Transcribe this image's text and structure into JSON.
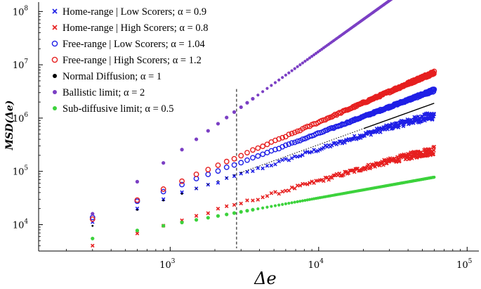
{
  "chart_data": {
    "type": "scatter",
    "title": "",
    "xlabel": "Δe",
    "ylabel": "MSD(Δe)",
    "xscale": "log",
    "yscale": "log",
    "xlim": [
      130,
      120000
    ],
    "ylim": [
      3200,
      150000000
    ],
    "x_ticks": [
      {
        "value": 1000,
        "base": "10",
        "exp": "3"
      },
      {
        "value": 10000,
        "base": "10",
        "exp": "4"
      },
      {
        "value": 100000,
        "base": "10",
        "exp": "5"
      }
    ],
    "y_ticks": [
      {
        "value": 10000,
        "base": "10",
        "exp": "4"
      },
      {
        "value": 100000,
        "base": "10",
        "exp": "5"
      },
      {
        "value": 1000000,
        "base": "10",
        "exp": "6"
      },
      {
        "value": 10000000,
        "base": "10",
        "exp": "7"
      },
      {
        "value": 100000000,
        "base": "10",
        "exp": "8"
      }
    ],
    "vertical_marker": {
      "x": 2800,
      "style": "dashed"
    },
    "x_start": 300,
    "x_step": 300,
    "n_points": 200,
    "legend_position": "top-left",
    "series": [
      {
        "name": "Home-range | Low Scorers; α = 0.9",
        "marker": "x",
        "color": "#1f1fe6",
        "c": 11000,
        "alpha": 0.9,
        "noise": 0.16,
        "bend": 0.12
      },
      {
        "name": "Home-range | High Scorers; α = 0.8",
        "marker": "x",
        "color": "#e61f1f",
        "c": 4000,
        "alpha": 0.8,
        "noise": 0.16,
        "bend": 0.1
      },
      {
        "name": "Free-range | Low Scorers; α = 1.04",
        "marker": "circle-open",
        "color": "#1f1fe6",
        "c": 13500,
        "alpha": 1.04,
        "noise": 0.05,
        "bend": 0
      },
      {
        "name": "Free-range | High Scorers; α = 1.2",
        "marker": "circle-open",
        "color": "#e61f1f",
        "c": 12500,
        "alpha": 1.2,
        "noise": 0.06,
        "bend": 0
      },
      {
        "name": "Normal Diffusion; α = 1",
        "marker": "dot",
        "color": "#000000",
        "c": 9500,
        "alpha": 1.0,
        "noise": 0,
        "bend": 0
      },
      {
        "name": "Ballistic limit; α = 2",
        "marker": "dot",
        "color": "#7b3fc4",
        "c": 16000,
        "alpha": 2.0,
        "noise": 0,
        "bend": 0
      },
      {
        "name": "Sub-diffusive limit;  α = 0.5",
        "marker": "dot",
        "color": "#3cd23c",
        "c": 5500,
        "alpha": 0.5,
        "noise": 0,
        "bend": 0
      }
    ]
  }
}
